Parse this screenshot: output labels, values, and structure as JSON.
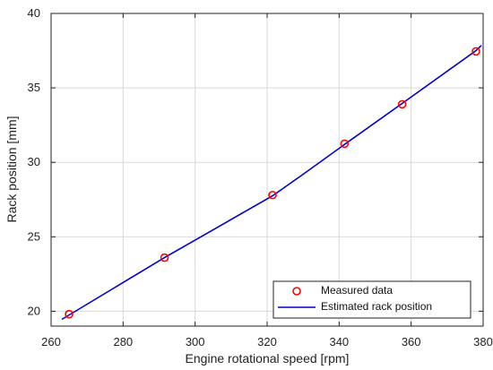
{
  "chart_data": {
    "type": "line",
    "xlabel": "Engine rotational speed [rpm]",
    "ylabel": "Rack position [mm]",
    "xlim": [
      260,
      380
    ],
    "ylim": [
      19,
      40
    ],
    "xticks": [
      260,
      280,
      300,
      320,
      340,
      360,
      380
    ],
    "yticks": [
      20,
      25,
      30,
      35,
      40
    ],
    "grid": true,
    "legend_position": "bottom-right",
    "series": [
      {
        "name": "Measured data",
        "kind": "scatter",
        "marker": "circle",
        "color": "#ff0000",
        "x": [
          265,
          291.5,
          321.5,
          341.5,
          357.5,
          378
        ],
        "y": [
          19.8,
          23.6,
          27.8,
          31.25,
          33.9,
          37.45
        ]
      },
      {
        "name": "Estimated rack position",
        "kind": "line",
        "color": "#0000cc",
        "x": [
          263,
          291.5,
          321.5,
          330,
          341.5,
          357.5,
          378,
          379.5
        ],
        "y": [
          19.45,
          23.6,
          27.75,
          29.2,
          31.2,
          33.95,
          37.5,
          37.85
        ]
      }
    ]
  }
}
